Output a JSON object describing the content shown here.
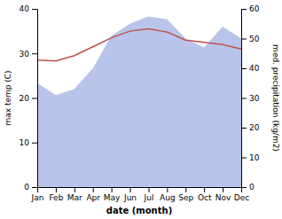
{
  "chart_data": {
    "type": "line",
    "categories": [
      "Jan",
      "Feb",
      "Mar",
      "Apr",
      "May",
      "Jun",
      "Jul",
      "Aug",
      "Sep",
      "Oct",
      "Nov",
      "Dec"
    ],
    "xlabel": "date (month)",
    "ylabel": "max temp (C)",
    "y2label": "med. precipitation (kg/m2)",
    "series": [
      {
        "type": "area",
        "axis": "y2",
        "color": "#b8c4ea",
        "values": [
          35.0,
          31.0,
          33.0,
          40.0,
          51.0,
          55.0,
          57.5,
          56.5,
          50.0,
          47.0,
          54.0,
          50.0
        ]
      },
      {
        "type": "line",
        "color": "#c0504d",
        "values": [
          28.5,
          28.3,
          29.5,
          31.5,
          33.5,
          35.0,
          35.5,
          34.8,
          33.0,
          32.5,
          32.0,
          31.0
        ]
      }
    ],
    "ylim": [
      0,
      40
    ],
    "yticks": [
      0,
      10,
      20,
      30,
      40
    ],
    "y2lim": [
      0,
      60
    ],
    "y2ticks": [
      0,
      10,
      20,
      30,
      40,
      50,
      60
    ]
  }
}
